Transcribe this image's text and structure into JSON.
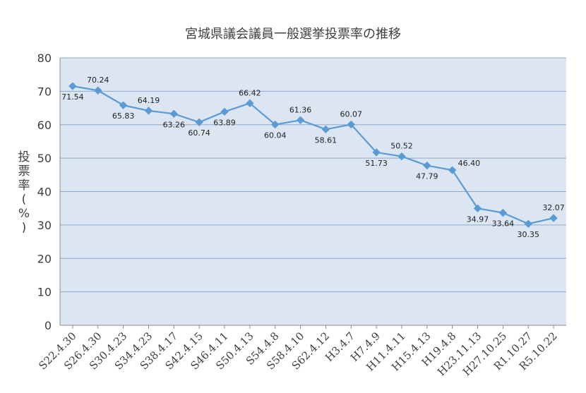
{
  "chart_data": {
    "type": "line",
    "title": "宮城県議会議員一般選挙投票率の推移",
    "ylabel": "投票率(%)",
    "xlabel": "",
    "ylim": [
      0,
      80
    ],
    "yticks": [
      0,
      10,
      20,
      30,
      40,
      50,
      60,
      70,
      80
    ],
    "grid": true,
    "categories": [
      "S22.4.30",
      "S26.4.30",
      "S30.4.23",
      "S34.4.23",
      "S38.4.17",
      "S42.4.15",
      "S46.4.11",
      "S50.4.13",
      "S54.4.8",
      "S58.4.10",
      "S62.4.12",
      "H3.4.7",
      "H7.4.9",
      "H11.4.11",
      "H15.4.13",
      "H19.4.8",
      "H23.11.13",
      "H27.10.25",
      "R1.10.27",
      "R5.10.22"
    ],
    "series": [
      {
        "values": [
          71.54,
          70.24,
          65.83,
          64.19,
          63.26,
          60.74,
          63.89,
          66.42,
          60.04,
          61.36,
          58.61,
          60.07,
          51.73,
          50.52,
          47.79,
          46.4,
          34.97,
          33.64,
          30.35,
          32.07
        ],
        "labels": [
          "71.54",
          "70.24",
          "65.83",
          "64.19",
          "63.26",
          "60.74",
          "63.89",
          "66.42",
          "60.04",
          "61.36",
          "58.61",
          "60.07",
          "51.73",
          "50.52",
          "47.79",
          "46.40",
          "34.97",
          "33.64",
          "30.35",
          "32.07"
        ],
        "label_pos": [
          "below",
          "above",
          "below",
          "above",
          "below",
          "below",
          "below",
          "above",
          "below",
          "above",
          "below",
          "above",
          "below",
          "above",
          "below",
          "right",
          "below",
          "below",
          "below",
          "above"
        ],
        "color": "#5b9bd5"
      }
    ],
    "plot_background": "#dce6f2",
    "grid_color": "#8ea9c9"
  }
}
